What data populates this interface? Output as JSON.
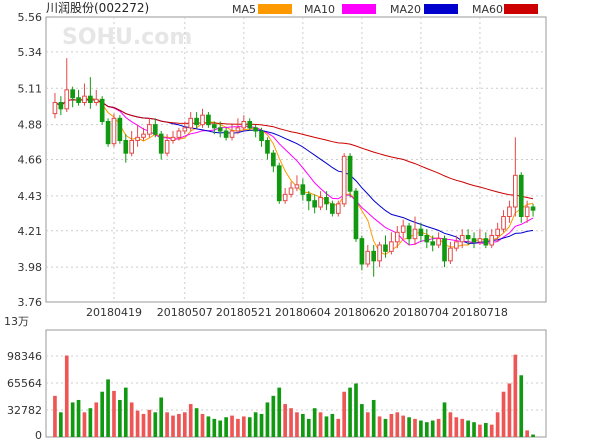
{
  "chart_data": {
    "type": "candlestick",
    "title": "川润股份(002272)",
    "watermark": "SOHU.com",
    "legend": [
      {
        "name": "MA5",
        "color": "#ff9900"
      },
      {
        "name": "MA10",
        "color": "#ff00ff"
      },
      {
        "name": "MA20",
        "color": "#0000cc"
      },
      {
        "name": "MA60",
        "color": "#cc0000"
      }
    ],
    "price_axis": {
      "ticks": [
        "5.56",
        "5.34",
        "5.11",
        "4.88",
        "4.66",
        "4.43",
        "4.21",
        "3.98",
        "3.76"
      ],
      "min": 3.76,
      "max": 5.56
    },
    "volume_axis": {
      "unit": "13万",
      "ticks": [
        "98346",
        "65564",
        "32782",
        "0"
      ],
      "max": 130000
    },
    "x_labels": [
      {
        "index": 10,
        "label": "20180419"
      },
      {
        "index": 22,
        "label": "20180507"
      },
      {
        "index": 32,
        "label": "20180521"
      },
      {
        "index": 42,
        "label": "20180604"
      },
      {
        "index": 52,
        "label": "20180620"
      },
      {
        "index": 62,
        "label": "20180704"
      },
      {
        "index": 72,
        "label": "20180718"
      }
    ],
    "candles": [
      [
        4.95,
        5.02,
        5.08,
        4.92,
        50000
      ],
      [
        5.02,
        4.98,
        5.06,
        4.94,
        30000
      ],
      [
        4.98,
        5.1,
        5.3,
        4.96,
        99000
      ],
      [
        5.1,
        5.05,
        5.12,
        4.99,
        42000
      ],
      [
        5.05,
        5.02,
        5.1,
        5.0,
        45000
      ],
      [
        5.02,
        5.06,
        5.14,
        5.0,
        30000
      ],
      [
        5.06,
        5.02,
        5.18,
        4.98,
        35000
      ],
      [
        5.02,
        5.04,
        5.1,
        5.0,
        42000
      ],
      [
        5.04,
        4.9,
        5.06,
        4.88,
        55000
      ],
      [
        4.9,
        4.76,
        4.92,
        4.74,
        70000
      ],
      [
        4.76,
        4.92,
        4.95,
        4.74,
        56000
      ],
      [
        4.92,
        4.78,
        4.94,
        4.76,
        45000
      ],
      [
        4.78,
        4.7,
        4.82,
        4.64,
        60000
      ],
      [
        4.7,
        4.78,
        4.84,
        4.68,
        42000
      ],
      [
        4.78,
        4.8,
        4.88,
        4.74,
        32000
      ],
      [
        4.8,
        4.82,
        4.86,
        4.78,
        28000
      ],
      [
        4.82,
        4.88,
        4.92,
        4.8,
        33000
      ],
      [
        4.88,
        4.82,
        4.92,
        4.8,
        30000
      ],
      [
        4.82,
        4.7,
        4.84,
        4.66,
        48000
      ],
      [
        4.7,
        4.78,
        4.82,
        4.68,
        30000
      ],
      [
        4.78,
        4.8,
        4.84,
        4.76,
        26000
      ],
      [
        4.8,
        4.84,
        4.86,
        4.78,
        28000
      ],
      [
        4.84,
        4.86,
        4.9,
        4.82,
        30000
      ],
      [
        4.86,
        4.92,
        4.96,
        4.84,
        40000
      ],
      [
        4.92,
        4.88,
        4.96,
        4.86,
        35000
      ],
      [
        4.88,
        4.94,
        4.98,
        4.86,
        28000
      ],
      [
        4.94,
        4.88,
        4.96,
        4.86,
        25000
      ],
      [
        4.88,
        4.86,
        4.9,
        4.82,
        22000
      ],
      [
        4.86,
        4.84,
        4.9,
        4.8,
        20000
      ],
      [
        4.84,
        4.8,
        4.86,
        4.78,
        24000
      ],
      [
        4.8,
        4.84,
        4.88,
        4.78,
        26000
      ],
      [
        4.84,
        4.86,
        4.92,
        4.82,
        22000
      ],
      [
        4.86,
        4.9,
        4.94,
        4.84,
        25000
      ],
      [
        4.9,
        4.86,
        4.92,
        4.84,
        24000
      ],
      [
        4.86,
        4.84,
        4.88,
        4.8,
        30000
      ],
      [
        4.84,
        4.78,
        4.86,
        4.74,
        28000
      ],
      [
        4.78,
        4.7,
        4.8,
        4.66,
        42000
      ],
      [
        4.7,
        4.62,
        4.72,
        4.58,
        50000
      ],
      [
        4.62,
        4.4,
        4.64,
        4.38,
        60000
      ],
      [
        4.4,
        4.44,
        4.48,
        4.38,
        40000
      ],
      [
        4.44,
        4.48,
        4.52,
        4.42,
        35000
      ],
      [
        4.48,
        4.5,
        4.56,
        4.46,
        30000
      ],
      [
        4.5,
        4.44,
        4.54,
        4.4,
        28000
      ],
      [
        4.44,
        4.4,
        4.46,
        4.34,
        22000
      ],
      [
        4.4,
        4.36,
        4.44,
        4.32,
        35000
      ],
      [
        4.36,
        4.42,
        4.46,
        4.34,
        30000
      ],
      [
        4.42,
        4.38,
        4.46,
        4.34,
        25000
      ],
      [
        4.38,
        4.32,
        4.4,
        4.3,
        28000
      ],
      [
        4.32,
        4.38,
        4.4,
        4.3,
        22000
      ],
      [
        4.38,
        4.68,
        4.7,
        4.36,
        55000
      ],
      [
        4.68,
        4.46,
        4.7,
        4.42,
        60000
      ],
      [
        4.46,
        4.16,
        4.48,
        4.14,
        65000
      ],
      [
        4.16,
        4.0,
        4.18,
        3.96,
        40000
      ],
      [
        4.0,
        4.08,
        4.12,
        3.98,
        30000
      ],
      [
        4.08,
        4.02,
        4.12,
        3.92,
        45000
      ],
      [
        4.02,
        4.12,
        4.14,
        3.98,
        25000
      ],
      [
        4.12,
        4.08,
        4.18,
        4.04,
        22000
      ],
      [
        4.08,
        4.14,
        4.2,
        4.06,
        28000
      ],
      [
        4.14,
        4.2,
        4.24,
        4.1,
        30000
      ],
      [
        4.2,
        4.24,
        4.28,
        4.16,
        26000
      ],
      [
        4.24,
        4.16,
        4.26,
        4.12,
        24000
      ],
      [
        4.16,
        4.22,
        4.3,
        4.12,
        22000
      ],
      [
        4.22,
        4.18,
        4.26,
        4.14,
        20000
      ],
      [
        4.18,
        4.14,
        4.22,
        4.1,
        18000
      ],
      [
        4.14,
        4.12,
        4.18,
        4.08,
        20000
      ],
      [
        4.12,
        4.16,
        4.2,
        4.1,
        22000
      ],
      [
        4.16,
        4.02,
        4.18,
        3.98,
        42000
      ],
      [
        4.02,
        4.1,
        4.14,
        4.0,
        30000
      ],
      [
        4.1,
        4.14,
        4.18,
        4.08,
        24000
      ],
      [
        4.14,
        4.18,
        4.22,
        4.1,
        22000
      ],
      [
        4.18,
        4.16,
        4.22,
        4.12,
        20000
      ],
      [
        4.16,
        4.14,
        4.2,
        4.1,
        18000
      ],
      [
        4.14,
        4.16,
        4.22,
        4.12,
        15000
      ],
      [
        4.16,
        4.12,
        4.2,
        4.1,
        17000
      ],
      [
        4.12,
        4.18,
        4.22,
        4.1,
        15000
      ],
      [
        4.18,
        4.22,
        4.26,
        4.14,
        30000
      ],
      [
        4.22,
        4.3,
        4.34,
        4.2,
        55000
      ],
      [
        4.3,
        4.36,
        4.4,
        4.26,
        65000
      ],
      [
        4.36,
        4.56,
        4.8,
        4.3,
        100000
      ],
      [
        4.56,
        4.3,
        4.58,
        4.26,
        75000
      ],
      [
        4.3,
        4.36,
        4.4,
        4.26,
        8000
      ],
      [
        4.36,
        4.34,
        4.38,
        4.3,
        3000
      ]
    ]
  }
}
